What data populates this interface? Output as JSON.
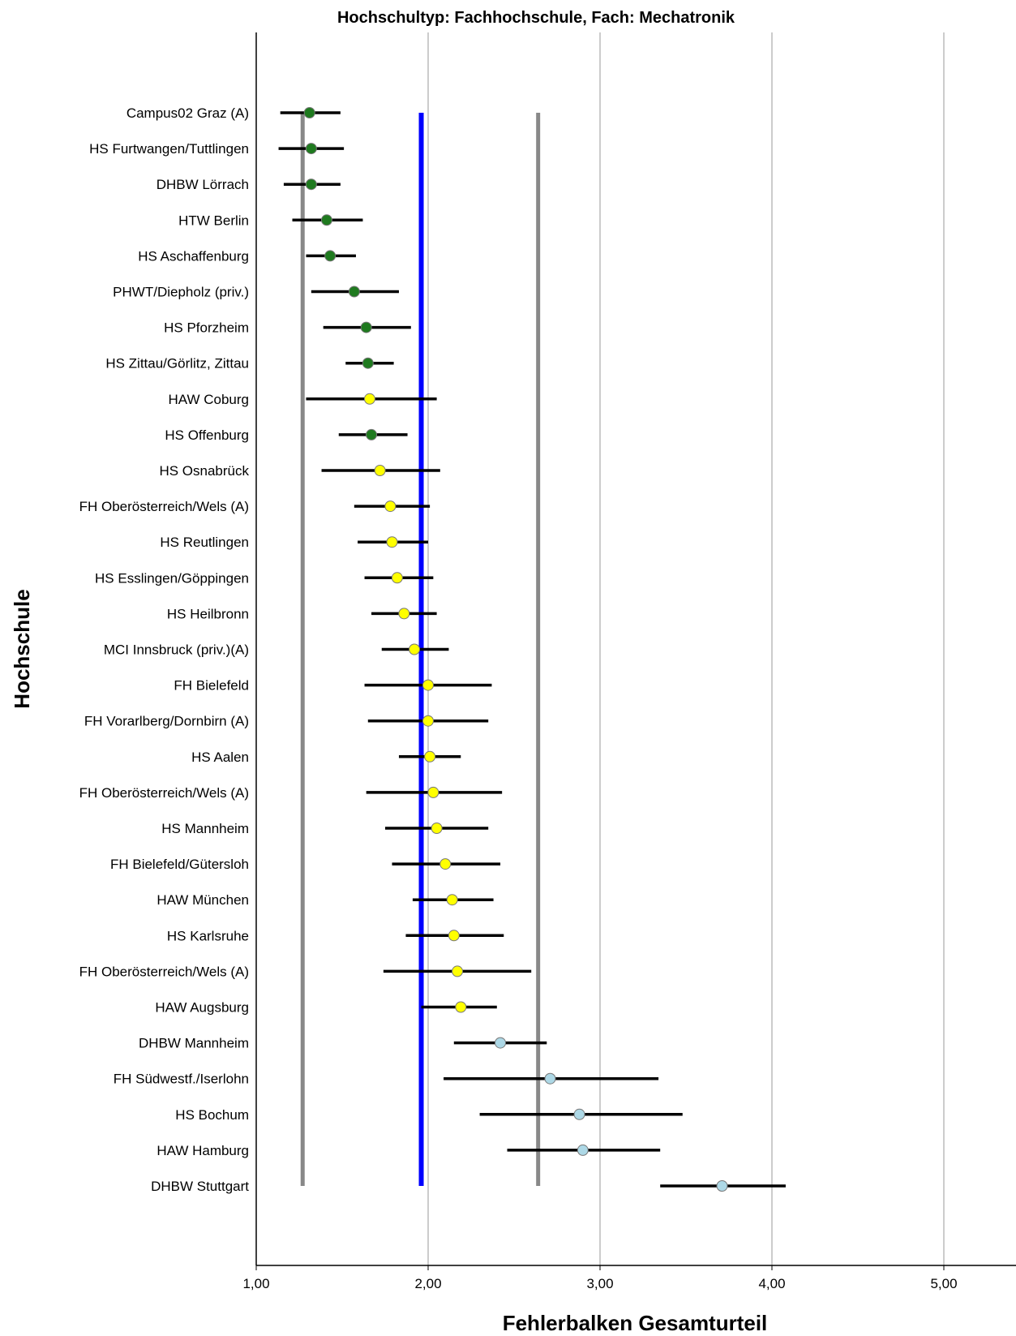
{
  "chart_data": {
    "type": "scatter",
    "title": "Hochschultyp: Fachhochschule, Fach: Mechatronik",
    "xlabel": "Fehlerbalken Gesamturteil",
    "ylabel": "Hochschule",
    "xlim": [
      1.0,
      5.42
    ],
    "x_ticks": [
      "1,00",
      "2,00",
      "3,00",
      "4,00",
      "5,00"
    ],
    "x_tick_values": [
      1,
      2,
      3,
      4,
      5
    ],
    "grid": "vertical",
    "colors": {
      "green": "#1f7a1f",
      "yellow": "#ffff00",
      "lightblue": "#add8e6",
      "blue_line": "#0000ff",
      "gray_line": "#888888",
      "grid": "#cccccc"
    },
    "reference_lines": [
      {
        "x": 1.27,
        "color": "#888888"
      },
      {
        "x": 1.96,
        "color": "#0000ff"
      },
      {
        "x": 2.64,
        "color": "#888888"
      }
    ],
    "categories": [
      "Campus02 Graz (A)",
      "HS Furtwangen/Tuttlingen",
      "DHBW Lörrach",
      "HTW Berlin",
      "HS Aschaffenburg",
      "PHWT/Diepholz (priv.)",
      "HS Pforzheim",
      "HS Zittau/Görlitz, Zittau",
      "HAW Coburg",
      "HS Offenburg",
      "HS Osnabrück",
      "FH Oberösterreich/Wels (A)",
      "HS Reutlingen",
      "HS Esslingen/Göppingen",
      "HS Heilbronn",
      "MCI Innsbruck (priv.)(A)",
      "FH Bielefeld",
      "FH Vorarlberg/Dornbirn (A)",
      "HS Aalen",
      "FH Oberösterreich/Wels (A)",
      "HS Mannheim",
      "FH Bielefeld/Gütersloh",
      "HAW München",
      "HS Karlsruhe",
      "FH Oberösterreich/Wels (A)",
      "HAW Augsburg",
      "DHBW Mannheim",
      "FH Südwestf./Iserlohn",
      "HS Bochum",
      "HAW Hamburg",
      "DHBW Stuttgart"
    ],
    "mean": [
      1.31,
      1.32,
      1.32,
      1.41,
      1.43,
      1.57,
      1.64,
      1.65,
      1.66,
      1.67,
      1.72,
      1.78,
      1.79,
      1.82,
      1.86,
      1.92,
      2.0,
      2.0,
      2.01,
      2.03,
      2.05,
      2.1,
      2.14,
      2.15,
      2.17,
      2.19,
      2.42,
      2.71,
      2.88,
      2.9,
      3.71
    ],
    "lower": [
      1.14,
      1.13,
      1.16,
      1.21,
      1.29,
      1.32,
      1.39,
      1.52,
      1.29,
      1.48,
      1.38,
      1.57,
      1.59,
      1.63,
      1.67,
      1.73,
      1.63,
      1.65,
      1.83,
      1.64,
      1.75,
      1.79,
      1.91,
      1.87,
      1.74,
      1.96,
      2.15,
      2.09,
      2.3,
      2.46,
      3.35
    ],
    "upper": [
      1.49,
      1.51,
      1.49,
      1.62,
      1.58,
      1.83,
      1.9,
      1.8,
      2.05,
      1.88,
      2.07,
      2.01,
      2.0,
      2.03,
      2.05,
      2.12,
      2.37,
      2.35,
      2.19,
      2.43,
      2.35,
      2.42,
      2.38,
      2.44,
      2.6,
      2.4,
      2.69,
      3.34,
      3.48,
      3.35,
      4.08
    ],
    "marker_color": [
      "green",
      "green",
      "green",
      "green",
      "green",
      "green",
      "green",
      "green",
      "yellow",
      "green",
      "yellow",
      "yellow",
      "yellow",
      "yellow",
      "yellow",
      "yellow",
      "yellow",
      "yellow",
      "yellow",
      "yellow",
      "yellow",
      "yellow",
      "yellow",
      "yellow",
      "yellow",
      "yellow",
      "lightblue",
      "lightblue",
      "lightblue",
      "lightblue",
      "lightblue"
    ]
  }
}
